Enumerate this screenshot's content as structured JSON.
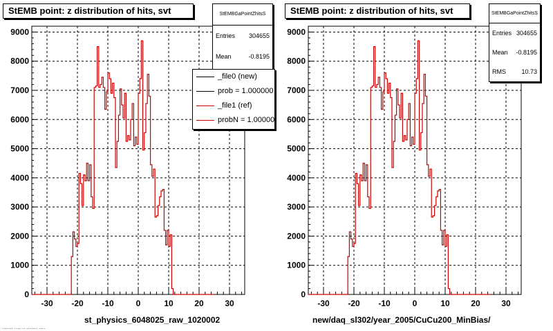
{
  "colors": {
    "ref": "#cc0000",
    "axis": "#000000",
    "grid": "#000000"
  },
  "pads": [
    {
      "title": "StEMB point: z distribution of hits, svt",
      "stats": {
        "name": "StEMBGaPointZhitsS",
        "rows": [
          {
            "label": "Entries",
            "value": "304655"
          },
          {
            "label": "Mean",
            "value": "-0.8195"
          }
        ]
      },
      "xtitle": "st_physics_6048025_raw_1020002",
      "legend": [
        {
          "label": "_file0 (new)",
          "color": "#000000"
        },
        {
          "label": "prob = 1.000000",
          "color": "#000000"
        },
        {
          "label": "_file1 (ref)",
          "color": "#cc0000"
        },
        {
          "label": "probN = 1.000000",
          "color": "#cc0000"
        }
      ]
    },
    {
      "title": "StEMB point: z distribution of hits, svt",
      "stats": {
        "name": "StEMBGaPointZhitsS",
        "rows": [
          {
            "label": "Entries",
            "value": "304655"
          },
          {
            "label": "Mean",
            "value": "-0.8195"
          },
          {
            "label": "RMS",
            "value": "10.73"
          }
        ]
      },
      "xtitle": "new/daq_sl302/year_2005/CuCu200_MinBias/"
    }
  ],
  "footer": "....... .... .. .......  ....",
  "chart_data": {
    "type": "histogram",
    "title": "StEMB point: z distribution of hits, svt",
    "xlim": [
      -35,
      35
    ],
    "ylim": [
      0,
      9200
    ],
    "xticks": [
      -30,
      -20,
      -10,
      0,
      10,
      20,
      30
    ],
    "yticks": [
      0,
      1000,
      2000,
      3000,
      4000,
      5000,
      6000,
      7000,
      8000,
      9000
    ],
    "grid": true,
    "bin_width": 0.5,
    "x_start": -35,
    "series": [
      {
        "values": [
          0,
          0,
          0,
          0,
          0,
          0,
          0,
          0,
          0,
          0,
          0,
          0,
          0,
          0,
          0,
          0,
          0,
          0,
          0,
          0,
          0,
          0,
          0,
          0,
          0,
          0,
          1300,
          2150,
          1900,
          1650,
          1750,
          4150,
          3800,
          3050,
          4100,
          3900,
          4500,
          3900,
          4450,
          3350,
          2950,
          7100,
          7150,
          8500,
          7100,
          7200,
          7450,
          7100,
          6350,
          6950,
          7600,
          7400,
          6900,
          7250,
          6750,
          4350,
          5250,
          6150,
          7050,
          6500,
          6050,
          6900,
          5250,
          5450,
          5300,
          6000,
          6550,
          5100,
          5400,
          5150,
          6900,
          7400,
          8700,
          4950,
          5550,
          6550,
          7550,
          6800,
          4450,
          4050,
          4300,
          2650,
          2700,
          3050,
          3350,
          3550,
          3600,
          2200,
          1700,
          2200,
          1650,
          2050,
          200,
          0,
          0,
          0,
          0,
          0,
          0,
          0,
          0,
          0,
          0,
          0,
          0,
          0,
          0,
          0,
          0,
          0,
          0,
          0,
          0,
          0,
          0,
          0,
          0,
          0,
          0,
          0
        ]
      }
    ]
  }
}
